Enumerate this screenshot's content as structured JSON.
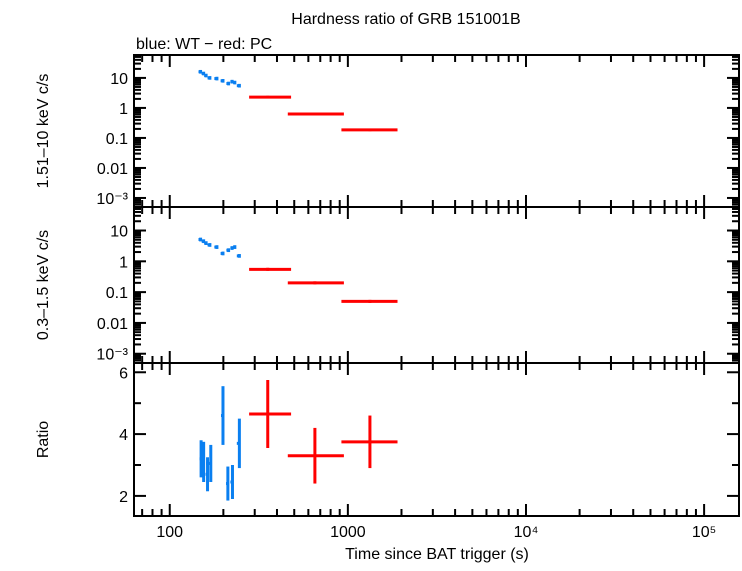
{
  "chart_data": {
    "type": "scatter",
    "title": "Hardness ratio of GRB 151001B",
    "subtitle": "blue: WT − red: PC",
    "xlabel": "Time since BAT trigger (s)",
    "xscale": "log",
    "xlim": [
      63,
      157000
    ],
    "xticks": [
      {
        "v": 100,
        "label": "100"
      },
      {
        "v": 1000,
        "label": "1000"
      },
      {
        "v": 10000,
        "label": "10⁴"
      },
      {
        "v": 100000,
        "label": "10⁵"
      }
    ],
    "colors": {
      "WT": "#0a7ff0",
      "PC": "#ff0000"
    },
    "panels": [
      {
        "ylabel": "1.51–10 keV c/s",
        "yscale": "log",
        "ylim": [
          0.0005,
          58
        ],
        "yticks": [
          {
            "v": 10,
            "label": "10"
          },
          {
            "v": 1,
            "label": "1"
          },
          {
            "v": 0.1,
            "label": "0.1"
          },
          {
            "v": 0.01,
            "label": "0.01"
          },
          {
            "v": 0.001,
            "label": "10⁻³"
          }
        ],
        "series": [
          {
            "name": "WT",
            "points": [
              [
                149,
                16,
                4,
                1.5,
                0.15
              ],
              [
                155,
                14,
                4,
                1.5,
                0.15
              ],
              [
                160,
                12,
                4,
                1.3,
                0.15
              ],
              [
                168,
                10,
                5,
                1.2,
                0.15
              ],
              [
                184,
                9.5,
                6,
                1.2,
                0.15
              ],
              [
                199,
                8,
                6,
                1.0,
                0.15
              ],
              [
                214,
                6.5,
                6,
                1.0,
                0.15
              ],
              [
                224,
                7.5,
                5,
                1.0,
                0.15
              ],
              [
                232,
                7,
                5,
                1.0,
                0.15
              ],
              [
                246,
                5.5,
                8,
                0.8,
                0.15
              ]
            ]
          },
          {
            "name": "PC",
            "points": [
              [
                355,
                2.3,
                76,
                125,
                0.1
              ],
              [
                653,
                0.63,
                193,
                297,
                0.1
              ],
              [
                1330,
                0.185,
                410,
                570,
                0.1
              ]
            ]
          }
        ]
      },
      {
        "ylabel": "0.3–1.5 keV c/s",
        "yscale": "log",
        "ylim": [
          0.0005,
          58
        ],
        "yticks": [
          {
            "v": 10,
            "label": "10"
          },
          {
            "v": 1,
            "label": "1"
          },
          {
            "v": 0.1,
            "label": "0.1"
          },
          {
            "v": 0.01,
            "label": "0.01"
          },
          {
            "v": 0.001,
            "label": "10⁻³"
          }
        ],
        "series": [
          {
            "name": "WT",
            "points": [
              [
                149,
                5.1,
                4,
                0.8,
                0.15
              ],
              [
                155,
                4.5,
                4,
                0.8,
                0.15
              ],
              [
                160,
                3.9,
                4,
                0.7,
                0.15
              ],
              [
                168,
                3.4,
                5,
                0.7,
                0.15
              ],
              [
                184,
                2.9,
                6,
                0.6,
                0.15
              ],
              [
                199,
                1.8,
                6,
                0.5,
                0.15
              ],
              [
                214,
                2.3,
                6,
                0.5,
                0.15
              ],
              [
                224,
                2.7,
                5,
                0.5,
                0.15
              ],
              [
                232,
                2.9,
                5,
                0.5,
                0.15
              ],
              [
                246,
                1.5,
                8,
                0.4,
                0.15
              ]
            ]
          },
          {
            "name": "PC",
            "points": [
              [
                355,
                0.55,
                76,
                125,
                0.12
              ],
              [
                653,
                0.2,
                193,
                297,
                0.12
              ],
              [
                1330,
                0.05,
                410,
                570,
                0.12
              ]
            ]
          }
        ]
      },
      {
        "ylabel": "Ratio",
        "yscale": "linear",
        "ylim": [
          1.35,
          6.3
        ],
        "yticks": [
          {
            "v": 6,
            "label": "6"
          },
          {
            "v": 4,
            "label": "4"
          },
          {
            "v": 2,
            "label": "2"
          }
        ],
        "series": [
          {
            "name": "WT",
            "points": [
              [
                150,
                3.2,
                3,
                0.6,
                0.6
              ],
              [
                155,
                3.1,
                3,
                0.65,
                0.65
              ],
              [
                163,
                2.7,
                4,
                0.55,
                0.55
              ],
              [
                170,
                3.05,
                10,
                0.6,
                0.6
              ],
              [
                199,
                4.6,
                5,
                0.95,
                0.95
              ],
              [
                212,
                2.4,
                5,
                0.55,
                0.55
              ],
              [
                225,
                2.45,
                6,
                0.55,
                0.55
              ],
              [
                246,
                3.7,
                8,
                0.8,
                0.8
              ]
            ]
          },
          {
            "name": "PC",
            "points": [
              [
                355,
                4.65,
                76,
                125,
                1.1
              ],
              [
                653,
                3.3,
                193,
                297,
                0.9
              ],
              [
                1330,
                3.75,
                410,
                570,
                0.85
              ]
            ]
          }
        ]
      }
    ]
  }
}
